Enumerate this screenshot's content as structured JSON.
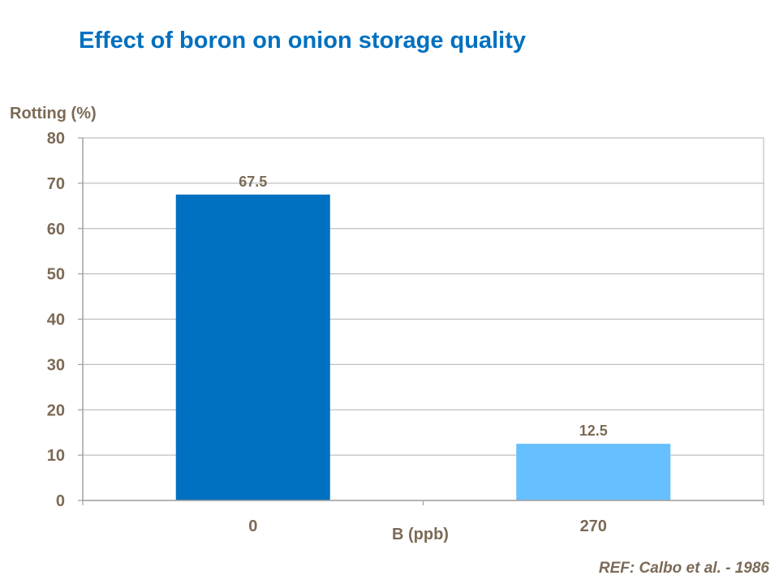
{
  "chart_data": {
    "type": "bar",
    "title": "Effect of boron on onion storage quality",
    "xlabel": "B (ppb)",
    "ylabel": "Rotting (%)",
    "categories": [
      "0",
      "270"
    ],
    "values": [
      67.5,
      12.5
    ],
    "data_labels": [
      "67.5",
      "12.5"
    ],
    "bar_colors": [
      "#0070C0",
      "#66BFFF"
    ],
    "ylim": [
      0,
      80
    ],
    "yticks": [
      0,
      10,
      20,
      30,
      40,
      50,
      60,
      70,
      80
    ],
    "grid": true,
    "legend": "none"
  },
  "footer": {
    "reference": "REF: Calbo et al. - 1986"
  },
  "colors": {
    "title": "#0070C0",
    "text": "#7B6A56",
    "grid": "#BFBFBF"
  }
}
